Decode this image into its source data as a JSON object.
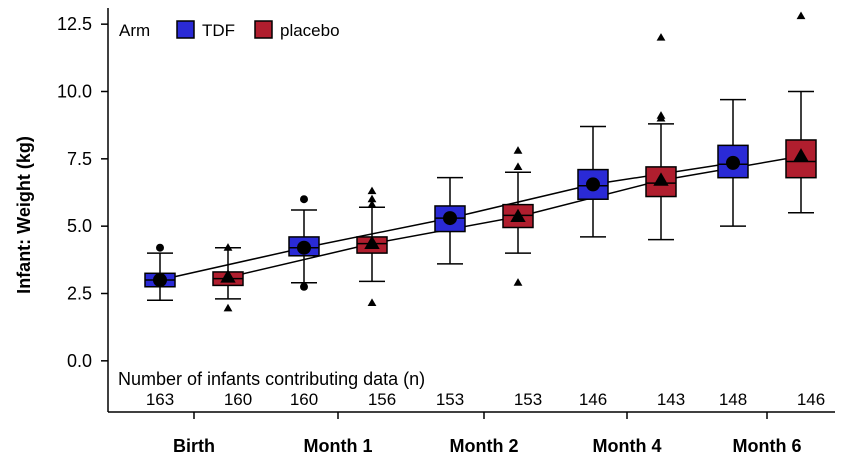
{
  "chart_data": {
    "type": "box",
    "ylabel": "Infant: Weight (kg)",
    "ylim": [
      -1.9,
      13.1
    ],
    "yticks": [
      "0.0",
      "2.5",
      "5.0",
      "7.5",
      "10.0",
      "12.5"
    ],
    "categories": [
      "Birth",
      "Month 1",
      "Month 2",
      "Month 4",
      "Month 6"
    ],
    "legend": {
      "title": "Arm",
      "placement": "top-left",
      "items": [
        "TDF",
        "placebo"
      ]
    },
    "n_title": "Number of infants contributing data (n)",
    "series": [
      {
        "name": "TDF",
        "color": "#2a2ad6",
        "marker": "circle",
        "n": [
          "163",
          "160",
          "153",
          "146",
          "148"
        ],
        "boxes": [
          {
            "whislo": 2.25,
            "q1": 2.75,
            "med": 3.0,
            "q3": 3.25,
            "whishi": 4.0,
            "mean": 3.0,
            "outliers": [
              4.2
            ]
          },
          {
            "whislo": 2.9,
            "q1": 3.9,
            "med": 4.2,
            "q3": 4.6,
            "whishi": 5.6,
            "mean": 4.2,
            "outliers": [
              6.0,
              2.75
            ]
          },
          {
            "whislo": 3.6,
            "q1": 4.8,
            "med": 5.3,
            "q3": 5.75,
            "whishi": 6.8,
            "mean": 5.3,
            "outliers": []
          },
          {
            "whislo": 4.6,
            "q1": 6.0,
            "med": 6.5,
            "q3": 7.1,
            "whishi": 8.7,
            "mean": 6.55,
            "outliers": []
          },
          {
            "whislo": 5.0,
            "q1": 6.8,
            "med": 7.3,
            "q3": 8.0,
            "whishi": 9.7,
            "mean": 7.35,
            "outliers": []
          }
        ]
      },
      {
        "name": "placebo",
        "color": "#b01e2e",
        "marker": "triangle",
        "n": [
          "160",
          "156",
          "153",
          "143",
          "146"
        ],
        "boxes": [
          {
            "whislo": 2.3,
            "q1": 2.8,
            "med": 3.05,
            "q3": 3.3,
            "whishi": 4.2,
            "mean": 3.1,
            "outliers": [
              1.95,
              4.2
            ]
          },
          {
            "whislo": 2.95,
            "q1": 4.0,
            "med": 4.35,
            "q3": 4.6,
            "whishi": 5.7,
            "mean": 4.35,
            "outliers": [
              6.3,
              6.0,
              5.8,
              2.15
            ]
          },
          {
            "whislo": 4.0,
            "q1": 4.95,
            "med": 5.4,
            "q3": 5.8,
            "whishi": 7.0,
            "mean": 5.35,
            "outliers": [
              7.8,
              7.2,
              2.9
            ]
          },
          {
            "whislo": 4.5,
            "q1": 6.1,
            "med": 6.6,
            "q3": 7.2,
            "whishi": 8.8,
            "mean": 6.7,
            "outliers": [
              12.0,
              9.1,
              9.0
            ]
          },
          {
            "whislo": 5.5,
            "q1": 6.8,
            "med": 7.4,
            "q3": 8.2,
            "whishi": 10.0,
            "mean": 7.6,
            "outliers": [
              12.8
            ]
          }
        ]
      }
    ]
  }
}
